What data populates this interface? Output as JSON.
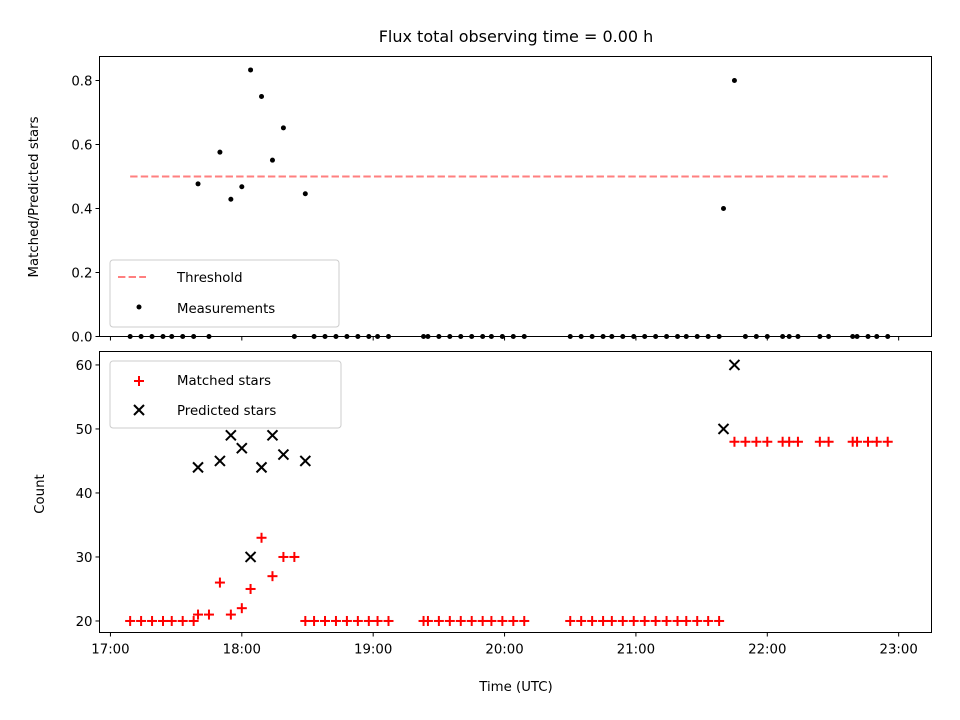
{
  "chart_data": [
    {
      "type": "scatter",
      "title": "Flux total observing time = 0.00 h",
      "xlabel": "",
      "ylabel": "Matched/Predicted stars",
      "ylim": [
        0,
        0.875
      ],
      "yticks": [
        "0.0",
        "0.2",
        "0.4",
        "0.6",
        "0.8"
      ],
      "xlim": [
        "16:55",
        "23:15"
      ],
      "xticks": [
        "17:00",
        "18:00",
        "19:00",
        "20:00",
        "21:00",
        "22:00",
        "23:00"
      ],
      "show_xtick_labels": false,
      "threshold": {
        "name": "Threshold",
        "value": 0.5,
        "x_start": "17:09",
        "x_end": "22:55",
        "color": "#ff7f7f",
        "style": "dashed"
      },
      "measurements": {
        "name": "Measurements",
        "color": "#000000",
        "points": [
          [
            "17:09",
            0.0
          ],
          [
            "17:14",
            0.0
          ],
          [
            "17:19",
            0.0
          ],
          [
            "17:24",
            0.0
          ],
          [
            "17:28",
            0.0
          ],
          [
            "17:33",
            0.0
          ],
          [
            "17:38",
            0.0
          ],
          [
            "17:40",
            0.477
          ],
          [
            "17:45",
            0.0
          ],
          [
            "17:50",
            0.576
          ],
          [
            "17:55",
            0.429
          ],
          [
            "18:00",
            0.468
          ],
          [
            "18:04",
            0.833
          ],
          [
            "18:09",
            0.75
          ],
          [
            "18:14",
            0.551
          ],
          [
            "18:19",
            0.652
          ],
          [
            "18:24",
            0.0
          ],
          [
            "18:29",
            0.446
          ],
          [
            "18:33",
            0.0
          ],
          [
            "18:38",
            0.0
          ],
          [
            "18:43",
            0.0
          ],
          [
            "18:48",
            0.0
          ],
          [
            "18:53",
            0.0
          ],
          [
            "18:58",
            0.0
          ],
          [
            "19:02",
            0.0
          ],
          [
            "19:07",
            0.0
          ],
          [
            "19:23",
            0.0
          ],
          [
            "19:25",
            0.0
          ],
          [
            "19:30",
            0.0
          ],
          [
            "19:35",
            0.0
          ],
          [
            "19:40",
            0.0
          ],
          [
            "19:45",
            0.0
          ],
          [
            "19:50",
            0.0
          ],
          [
            "19:54",
            0.0
          ],
          [
            "19:59",
            0.0
          ],
          [
            "20:04",
            0.0
          ],
          [
            "20:09",
            0.0
          ],
          [
            "20:30",
            0.0
          ],
          [
            "20:35",
            0.0
          ],
          [
            "20:40",
            0.0
          ],
          [
            "20:45",
            0.0
          ],
          [
            "20:49",
            0.0
          ],
          [
            "20:54",
            0.0
          ],
          [
            "20:59",
            0.0
          ],
          [
            "21:04",
            0.0
          ],
          [
            "21:09",
            0.0
          ],
          [
            "21:14",
            0.0
          ],
          [
            "21:19",
            0.0
          ],
          [
            "21:23",
            0.0
          ],
          [
            "21:28",
            0.0
          ],
          [
            "21:33",
            0.0
          ],
          [
            "21:38",
            0.0
          ],
          [
            "21:40",
            0.4
          ],
          [
            "21:45",
            0.8
          ],
          [
            "21:50",
            0.0
          ],
          [
            "21:55",
            0.0
          ],
          [
            "22:00",
            0.0
          ],
          [
            "22:07",
            0.0
          ],
          [
            "22:10",
            0.0
          ],
          [
            "22:14",
            0.0
          ],
          [
            "22:24",
            0.0
          ],
          [
            "22:28",
            0.0
          ],
          [
            "22:39",
            0.0
          ],
          [
            "22:41",
            0.0
          ],
          [
            "22:46",
            0.0
          ],
          [
            "22:50",
            0.0
          ],
          [
            "22:55",
            0.0
          ]
        ]
      },
      "legend": {
        "placement": "lower-left",
        "entries": [
          "Threshold",
          "Measurements"
        ]
      }
    },
    {
      "type": "scatter",
      "title": "",
      "xlabel": "Time (UTC)",
      "ylabel": "Count",
      "ylim": [
        18.2,
        62.1
      ],
      "yticks": [
        "20",
        "30",
        "40",
        "50",
        "60"
      ],
      "xlim": [
        "16:55",
        "23:15"
      ],
      "xticks": [
        "17:00",
        "18:00",
        "19:00",
        "20:00",
        "21:00",
        "22:00",
        "23:00"
      ],
      "show_xtick_labels": true,
      "series": [
        {
          "name": "Matched stars",
          "marker": "plus",
          "color": "#ff0000",
          "points": [
            [
              "17:09",
              20
            ],
            [
              "17:14",
              20
            ],
            [
              "17:19",
              20
            ],
            [
              "17:24",
              20
            ],
            [
              "17:28",
              20
            ],
            [
              "17:33",
              20
            ],
            [
              "17:38",
              20
            ],
            [
              "17:40",
              21
            ],
            [
              "17:45",
              21
            ],
            [
              "17:50",
              26
            ],
            [
              "17:55",
              21
            ],
            [
              "18:00",
              22
            ],
            [
              "18:04",
              25
            ],
            [
              "18:09",
              33
            ],
            [
              "18:14",
              27
            ],
            [
              "18:19",
              30
            ],
            [
              "18:24",
              30
            ],
            [
              "18:29",
              20
            ],
            [
              "18:33",
              20
            ],
            [
              "18:38",
              20
            ],
            [
              "18:43",
              20
            ],
            [
              "18:48",
              20
            ],
            [
              "18:53",
              20
            ],
            [
              "18:58",
              20
            ],
            [
              "19:02",
              20
            ],
            [
              "19:07",
              20
            ],
            [
              "19:23",
              20
            ],
            [
              "19:25",
              20
            ],
            [
              "19:30",
              20
            ],
            [
              "19:35",
              20
            ],
            [
              "19:40",
              20
            ],
            [
              "19:45",
              20
            ],
            [
              "19:50",
              20
            ],
            [
              "19:54",
              20
            ],
            [
              "19:59",
              20
            ],
            [
              "20:04",
              20
            ],
            [
              "20:09",
              20
            ],
            [
              "20:30",
              20
            ],
            [
              "20:35",
              20
            ],
            [
              "20:40",
              20
            ],
            [
              "20:45",
              20
            ],
            [
              "20:49",
              20
            ],
            [
              "20:54",
              20
            ],
            [
              "20:59",
              20
            ],
            [
              "21:04",
              20
            ],
            [
              "21:09",
              20
            ],
            [
              "21:14",
              20
            ],
            [
              "21:19",
              20
            ],
            [
              "21:23",
              20
            ],
            [
              "21:28",
              20
            ],
            [
              "21:33",
              20
            ],
            [
              "21:38",
              20
            ],
            [
              "21:45",
              48
            ],
            [
              "21:50",
              48
            ],
            [
              "21:55",
              48
            ],
            [
              "22:00",
              48
            ],
            [
              "22:07",
              48
            ],
            [
              "22:10",
              48
            ],
            [
              "22:14",
              48
            ],
            [
              "22:24",
              48
            ],
            [
              "22:28",
              48
            ],
            [
              "22:39",
              48
            ],
            [
              "22:41",
              48
            ],
            [
              "22:46",
              48
            ],
            [
              "22:50",
              48
            ],
            [
              "22:55",
              48
            ]
          ]
        },
        {
          "name": "Predicted stars",
          "marker": "x",
          "color": "#000000",
          "points": [
            [
              "17:40",
              44
            ],
            [
              "17:50",
              45
            ],
            [
              "17:55",
              49
            ],
            [
              "18:00",
              47
            ],
            [
              "18:04",
              30
            ],
            [
              "18:09",
              44
            ],
            [
              "18:14",
              49
            ],
            [
              "18:19",
              46
            ],
            [
              "18:29",
              45
            ],
            [
              "21:40",
              50
            ],
            [
              "21:45",
              60
            ]
          ]
        }
      ],
      "legend": {
        "placement": "upper-left",
        "entries": [
          "Matched stars",
          "Predicted stars"
        ]
      }
    }
  ]
}
